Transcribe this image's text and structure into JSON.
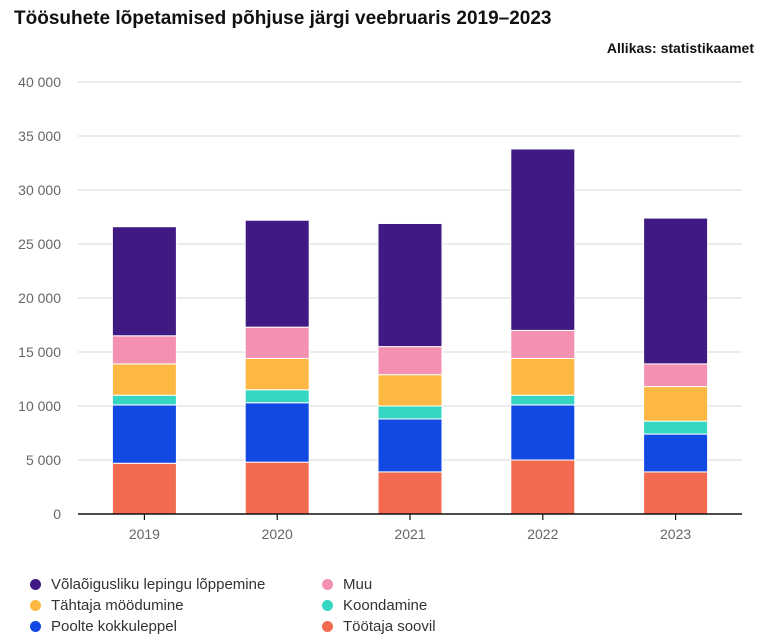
{
  "title": "Töösuhete lõpetamised põhjuse järgi veebruaris 2019–2023",
  "source": "Allikas: statistikaamet",
  "chart_data": {
    "type": "bar",
    "stacked": true,
    "title": "Töösuhete lõpetamised põhjuse järgi veebruaris 2019–2023",
    "xlabel": "",
    "ylabel": "",
    "ylim": [
      0,
      40000
    ],
    "yticks": [
      0,
      5000,
      10000,
      15000,
      20000,
      25000,
      30000,
      35000,
      40000
    ],
    "ytick_labels": [
      "0",
      "5 000",
      "10 000",
      "15 000",
      "20 000",
      "25 000",
      "30 000",
      "35 000",
      "40 000"
    ],
    "grid": true,
    "legend_position": "bottom",
    "categories": [
      "2019",
      "2020",
      "2021",
      "2022",
      "2023"
    ],
    "series": [
      {
        "name": "Töötaja soovil",
        "color": "#f26b50",
        "values": [
          4700,
          4800,
          3900,
          5000,
          3900
        ]
      },
      {
        "name": "Poolte kokkuleppel",
        "color": "#1249e3",
        "values": [
          5400,
          5500,
          4900,
          5100,
          3500
        ]
      },
      {
        "name": "Koondamine",
        "color": "#36d6c3",
        "values": [
          900,
          1200,
          1200,
          900,
          1200
        ]
      },
      {
        "name": "Tähtaja möödumine",
        "color": "#fdb843",
        "values": [
          2900,
          2900,
          2900,
          3400,
          3200
        ]
      },
      {
        "name": "Muu",
        "color": "#f490b0",
        "values": [
          2600,
          2900,
          2600,
          2600,
          2100
        ]
      },
      {
        "name": "Võlaõigusliku lepingu lõppemine",
        "color": "#3f1a82",
        "values": [
          10100,
          9900,
          11400,
          16800,
          13500
        ]
      }
    ]
  },
  "legend": [
    {
      "label": "Võlaõigusliku lepingu lõppemine",
      "color": "#3f1a82"
    },
    {
      "label": "Muu",
      "color": "#f490b0"
    },
    {
      "label": "Tähtaja möödumine",
      "color": "#fdb843"
    },
    {
      "label": "Koondamine",
      "color": "#36d6c3"
    },
    {
      "label": "Poolte kokkuleppel",
      "color": "#1249e3"
    },
    {
      "label": "Töötaja soovil",
      "color": "#f26b50"
    }
  ]
}
